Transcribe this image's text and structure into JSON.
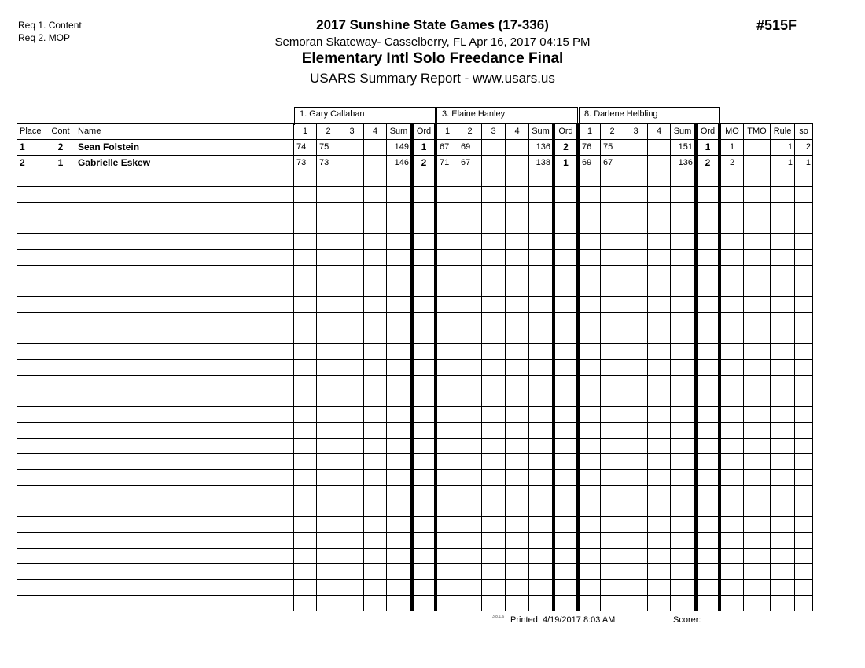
{
  "requirements": [
    "Req 1. Content",
    "Req 2. MOP"
  ],
  "header": {
    "title": "2017 Sunshine State Games (17-336)",
    "venue": "Semoran Skateway- Casselberry, FL  Apr 16, 2017  04:15 PM",
    "event": "Elementary Intl Solo Freedance Final",
    "report": "USARS Summary Report - www.usars.us",
    "event_number": "#515F"
  },
  "judges": [
    "1.  Gary Callahan",
    "3.  Elaine Hanley",
    "8.  Darlene Helbling"
  ],
  "columns": {
    "place": "Place",
    "cont": "Cont",
    "name": "Name",
    "judge_cols": [
      "1",
      "2",
      "3",
      "4",
      "Sum",
      "Ord"
    ],
    "extra": [
      "MO",
      "TMO",
      "Rule",
      "so"
    ]
  },
  "rows": [
    {
      "place": "1",
      "cont": "2",
      "name": "Sean Folstein",
      "judges": [
        [
          "74",
          "75",
          "",
          "",
          "149",
          "1"
        ],
        [
          "67",
          "69",
          "",
          "",
          "136",
          "2"
        ],
        [
          "76",
          "75",
          "",
          "",
          "151",
          "1"
        ]
      ],
      "extra": [
        "1",
        "",
        "1",
        "2"
      ]
    },
    {
      "place": "2",
      "cont": "1",
      "name": "Gabrielle Eskew",
      "judges": [
        [
          "73",
          "73",
          "",
          "",
          "146",
          "2"
        ],
        [
          "71",
          "67",
          "",
          "",
          "138",
          "1"
        ],
        [
          "69",
          "67",
          "",
          "",
          "136",
          "2"
        ]
      ],
      "extra": [
        "2",
        "",
        "1",
        "1"
      ]
    }
  ],
  "footer": {
    "version": "3.8.1.6",
    "printed": "Printed:  4/19/2017  8:03 AM",
    "scorer": "Scorer:"
  }
}
